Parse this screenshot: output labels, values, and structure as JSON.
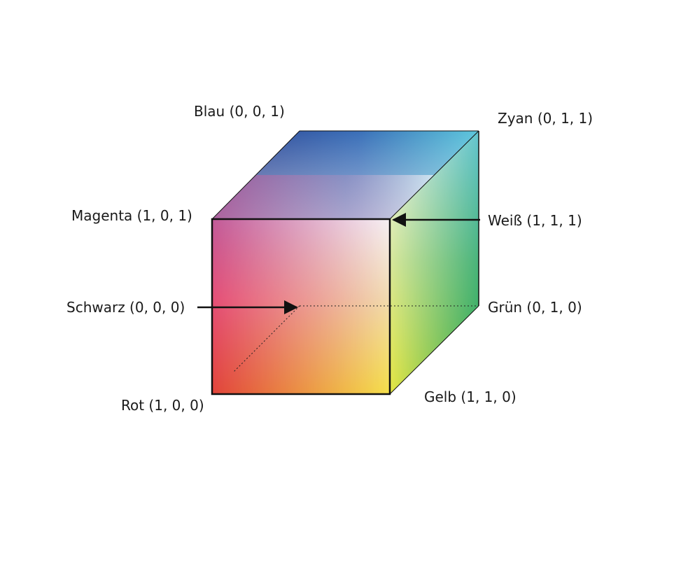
{
  "corners": {
    "blau": {
      "label": "Blau (0, 0, 1)",
      "color": "#2c3e8f"
    },
    "zyan": {
      "label": "Zyan (0, 1, 1)",
      "color": "#5cc4d8"
    },
    "magenta": {
      "label": "Magenta (1, 0, 1)",
      "color": "#b8508f"
    },
    "weiss": {
      "label": "Weiß (1, 1, 1)",
      "color": "#ffffff"
    },
    "schwarz": {
      "label": "Schwarz (0, 0, 0)",
      "color": "#000000"
    },
    "gruen": {
      "label": "Grün (0, 1, 0)",
      "color": "#2eaa4a"
    },
    "rot": {
      "label": "Rot (1, 0, 0)",
      "color": "#e2443a"
    },
    "gelb": {
      "label": "Gelb (1, 1, 0)",
      "color": "#f5e24a"
    }
  }
}
